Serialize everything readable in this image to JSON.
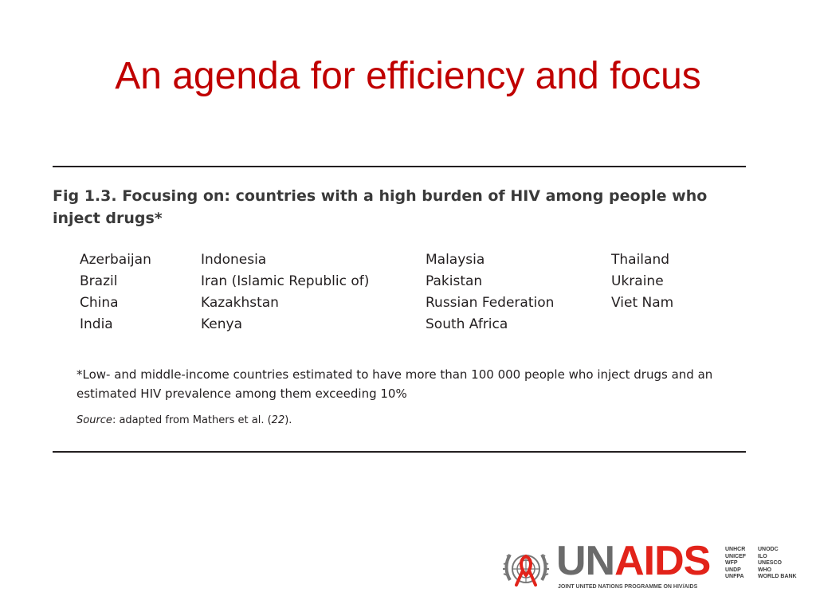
{
  "slide": {
    "title": "An agenda for efficiency and focus"
  },
  "figure": {
    "title": "Fig 1.3. Focusing on: countries with a high burden of HIV among people who inject drugs*",
    "columns": [
      [
        "Azerbaijan",
        "Brazil",
        "China",
        "India"
      ],
      [
        "Indonesia",
        "Iran (Islamic Republic of)",
        "Kazakhstan",
        "Kenya"
      ],
      [
        "Malaysia",
        "Pakistan",
        "Russian Federation",
        "South Africa"
      ],
      [
        "Thailand",
        "Ukraine",
        "Viet Nam"
      ]
    ],
    "footnote": "*Low- and middle-income countries estimated to have more than 100 000 people who inject drugs and an estimated HIV prevalence among them exceeding 10%",
    "source_label": "Source",
    "source_text": ": adapted from Mathers et al. (",
    "source_ref": "22",
    "source_end": ")."
  },
  "logo": {
    "un": "UN",
    "aids": "AIDS",
    "tagline": "JOINT UNITED NATIONS PROGRAMME ON HIV/AIDS",
    "cosponsors_left": [
      "UNHCR",
      "UNICEF",
      "WFP",
      "UNDP",
      "UNFPA"
    ],
    "cosponsors_right": [
      "UNODC",
      "ILO",
      "UNESCO",
      "WHO",
      "WORLD BANK"
    ],
    "colors": {
      "red": "#e2231a",
      "grey": "#6b6b6b"
    }
  },
  "colors": {
    "title": "#c00000",
    "text": "#231f20"
  }
}
